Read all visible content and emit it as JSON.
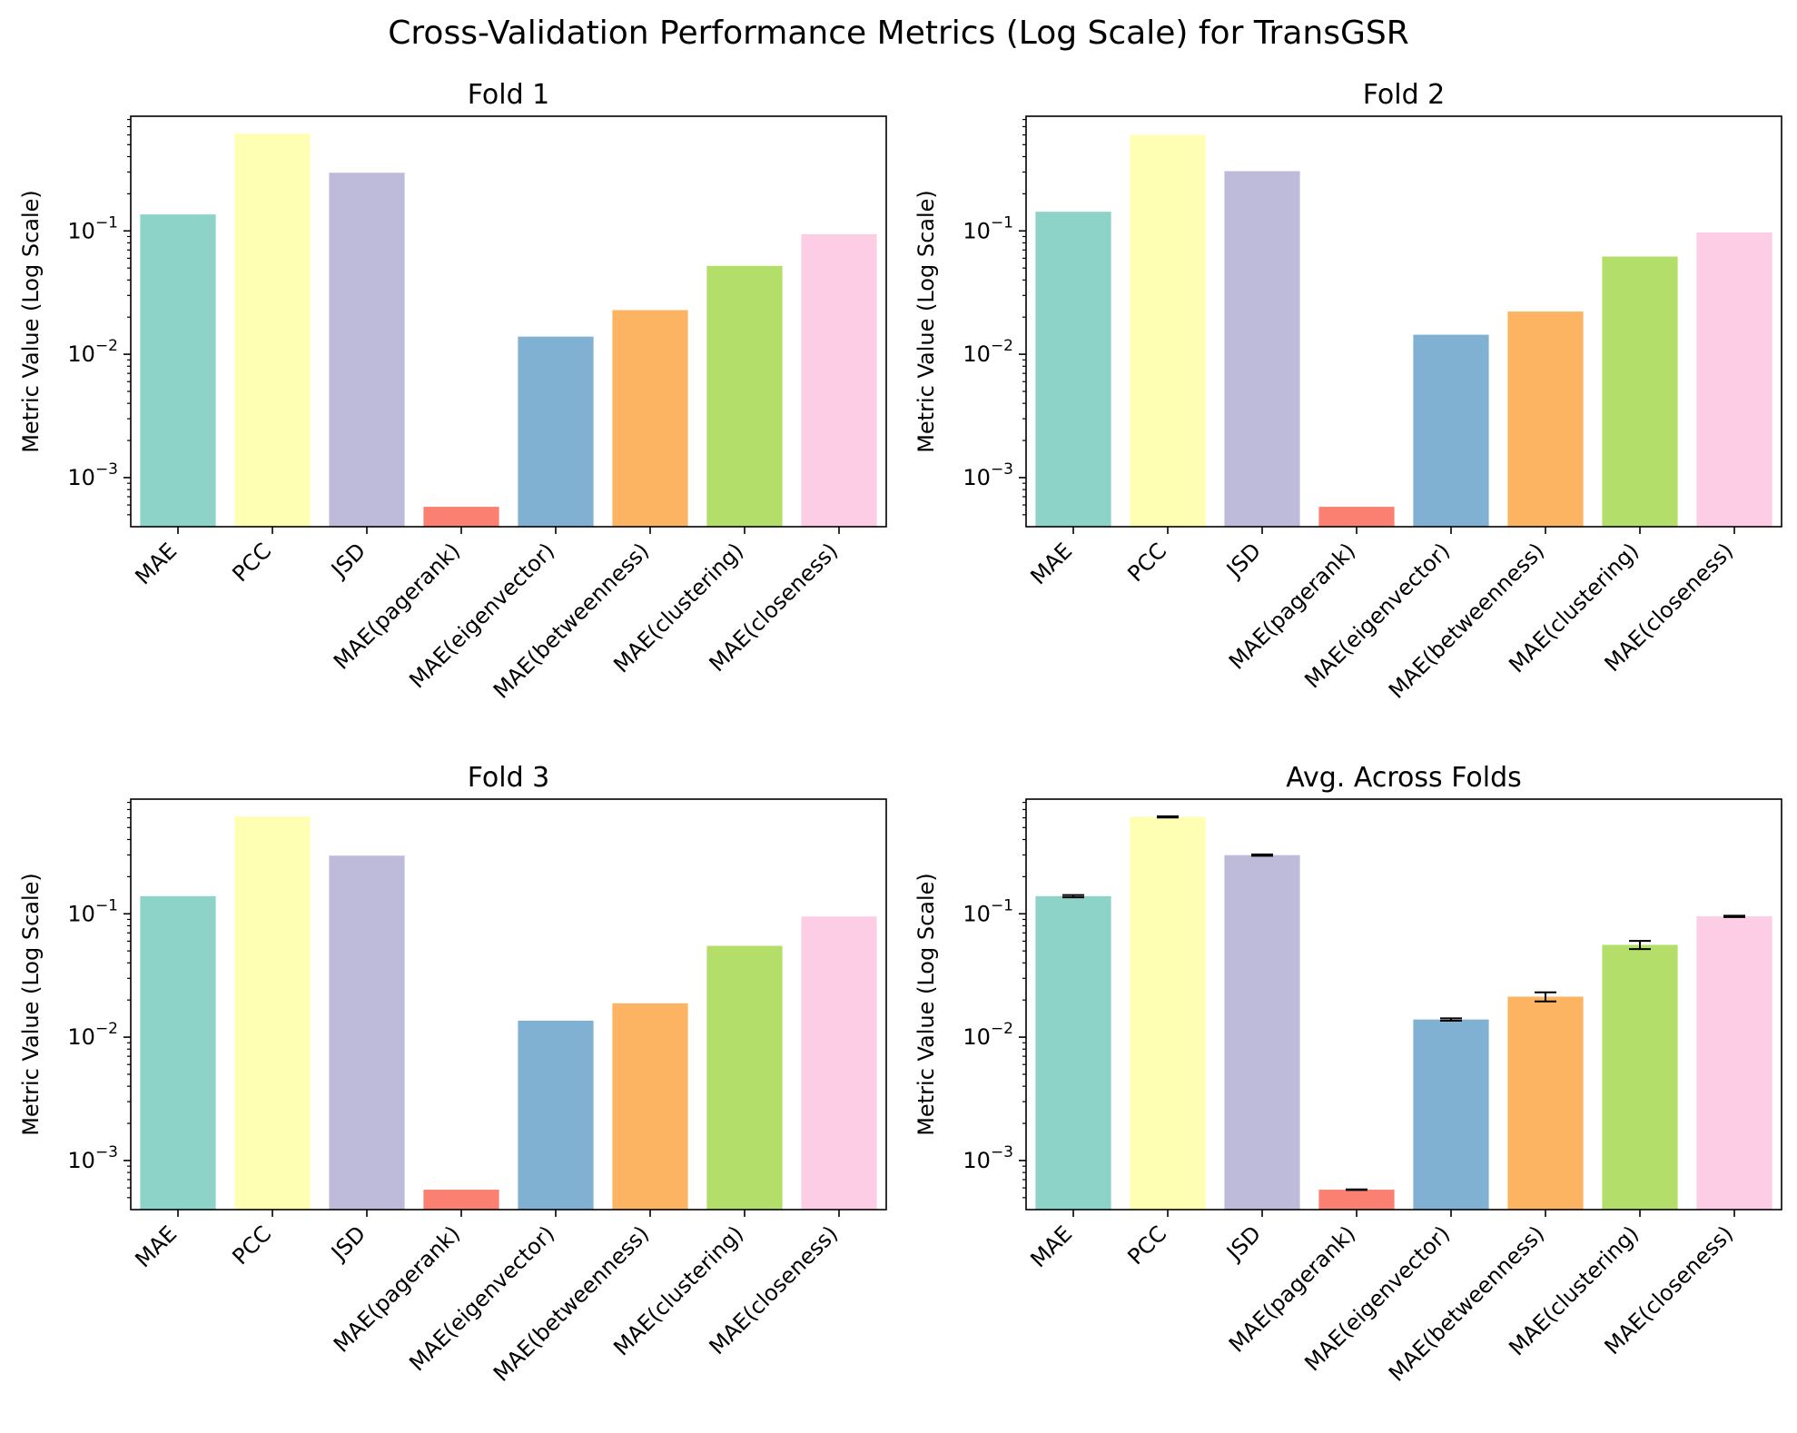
{
  "figure": {
    "title": "Cross-Validation Performance Metrics (Log Scale) for TransGSR"
  },
  "chart_data": [
    {
      "type": "bar",
      "title": "Fold 1",
      "ylabel": "Metric Value (Log Scale)",
      "yscale": "log",
      "ylim": [
        0.0004,
        0.85
      ],
      "yticks": [
        0.001,
        0.01,
        0.1
      ],
      "ytick_labels": [
        {
          "base": "10",
          "exp": "−3"
        },
        {
          "base": "10",
          "exp": "−2"
        },
        {
          "base": "10",
          "exp": "−1"
        }
      ],
      "categories": [
        "MAE",
        "PCC",
        "JSD",
        "MAE(pagerank)",
        "MAE(eigenvector)",
        "MAE(betweenness)",
        "MAE(clustering)",
        "MAE(closeness)"
      ],
      "values": [
        0.136,
        0.615,
        0.296,
        0.00058,
        0.0139,
        0.0228,
        0.052,
        0.094
      ],
      "colors": [
        "#8dd3c7",
        "#ffffb3",
        "#bebada",
        "#fb8072",
        "#80b1d3",
        "#fdb462",
        "#b3de69",
        "#fccde5"
      ]
    },
    {
      "type": "bar",
      "title": "Fold 2",
      "ylabel": "Metric Value (Log Scale)",
      "yscale": "log",
      "ylim": [
        0.0004,
        0.85
      ],
      "yticks": [
        0.001,
        0.01,
        0.1
      ],
      "ytick_labels": [
        {
          "base": "10",
          "exp": "−3"
        },
        {
          "base": "10",
          "exp": "−2"
        },
        {
          "base": "10",
          "exp": "−1"
        }
      ],
      "categories": [
        "MAE",
        "PCC",
        "JSD",
        "MAE(pagerank)",
        "MAE(eigenvector)",
        "MAE(betweenness)",
        "MAE(clustering)",
        "MAE(closeness)"
      ],
      "values": [
        0.143,
        0.6,
        0.305,
        0.00058,
        0.0144,
        0.0222,
        0.062,
        0.097
      ],
      "colors": [
        "#8dd3c7",
        "#ffffb3",
        "#bebada",
        "#fb8072",
        "#80b1d3",
        "#fdb462",
        "#b3de69",
        "#fccde5"
      ]
    },
    {
      "type": "bar",
      "title": "Fold 3",
      "ylabel": "Metric Value (Log Scale)",
      "yscale": "log",
      "ylim": [
        0.0004,
        0.85
      ],
      "yticks": [
        0.001,
        0.01,
        0.1
      ],
      "ytick_labels": [
        {
          "base": "10",
          "exp": "−3"
        },
        {
          "base": "10",
          "exp": "−2"
        },
        {
          "base": "10",
          "exp": "−1"
        }
      ],
      "categories": [
        "MAE",
        "PCC",
        "JSD",
        "MAE(pagerank)",
        "MAE(eigenvector)",
        "MAE(betweenness)",
        "MAE(clustering)",
        "MAE(closeness)"
      ],
      "values": [
        0.139,
        0.615,
        0.296,
        0.00058,
        0.0136,
        0.0188,
        0.055,
        0.095
      ],
      "colors": [
        "#8dd3c7",
        "#ffffb3",
        "#bebada",
        "#fb8072",
        "#80b1d3",
        "#fdb462",
        "#b3de69",
        "#fccde5"
      ]
    },
    {
      "type": "bar",
      "title": "Avg. Across Folds",
      "ylabel": "Metric Value (Log Scale)",
      "yscale": "log",
      "ylim": [
        0.0004,
        0.85
      ],
      "yticks": [
        0.001,
        0.01,
        0.1
      ],
      "ytick_labels": [
        {
          "base": "10",
          "exp": "−3"
        },
        {
          "base": "10",
          "exp": "−2"
        },
        {
          "base": "10",
          "exp": "−1"
        }
      ],
      "categories": [
        "MAE",
        "PCC",
        "JSD",
        "MAE(pagerank)",
        "MAE(eigenvector)",
        "MAE(betweenness)",
        "MAE(clustering)",
        "MAE(closeness)"
      ],
      "values": [
        0.139,
        0.61,
        0.299,
        0.00058,
        0.0139,
        0.0213,
        0.056,
        0.0953
      ],
      "errors": [
        0.003,
        0.007,
        0.004,
        3e-06,
        0.0003,
        0.0018,
        0.0043,
        0.0012
      ],
      "colors": [
        "#8dd3c7",
        "#ffffb3",
        "#bebada",
        "#fb8072",
        "#80b1d3",
        "#fdb462",
        "#b3de69",
        "#fccde5"
      ]
    }
  ]
}
